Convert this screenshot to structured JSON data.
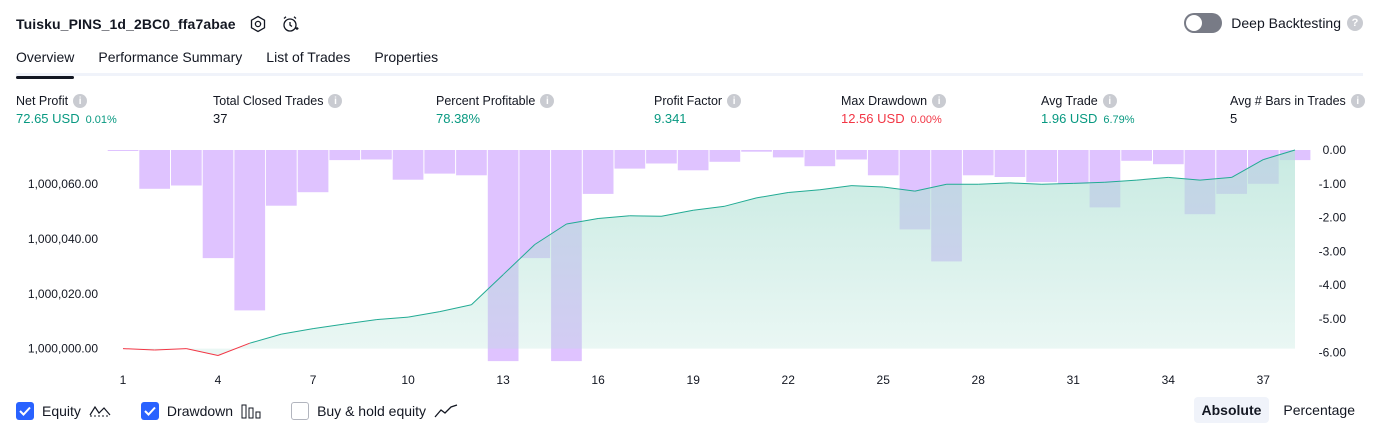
{
  "header": {
    "title": "Tuisku_PINS_1d_2BC0_ffa7abae",
    "icons": [
      "settings-icon",
      "alert-clock-icon"
    ],
    "deep_backtesting_label": "Deep Backtesting",
    "deep_backtesting_enabled": false,
    "help_glyph": "?"
  },
  "tabs": [
    {
      "label": "Overview",
      "active": true
    },
    {
      "label": "Performance Summary",
      "active": false
    },
    {
      "label": "List of Trades",
      "active": false
    },
    {
      "label": "Properties",
      "active": false
    }
  ],
  "metrics": [
    {
      "label": "Net Profit",
      "value": "72.65 USD",
      "sub": "0.01%",
      "tone": "pos"
    },
    {
      "label": "Total Closed Trades",
      "value": "37",
      "sub": "",
      "tone": "neutral"
    },
    {
      "label": "Percent Profitable",
      "value": "78.38%",
      "sub": "",
      "tone": "pos"
    },
    {
      "label": "Profit Factor",
      "value": "9.341",
      "sub": "",
      "tone": "pos"
    },
    {
      "label": "Max Drawdown",
      "value": "12.56 USD",
      "sub": "0.00%",
      "tone": "neg"
    },
    {
      "label": "Avg Trade",
      "value": "1.96 USD",
      "sub": "6.79%",
      "tone": "pos"
    },
    {
      "label": "Avg # Bars in Trades",
      "value": "5",
      "sub": "",
      "tone": "neutral"
    }
  ],
  "info_glyph": "i",
  "colors": {
    "positive": "#089981",
    "negative": "#f23645",
    "drawdown_bar": "#d9b8ff",
    "equity_line_up": "#22ab94",
    "equity_line_down": "#f23645",
    "equity_fill": "#b2e2d6",
    "accent": "#2962ff"
  },
  "chart_data": {
    "type": "bar+area",
    "x_ticks": [
      "1",
      "4",
      "7",
      "10",
      "13",
      "16",
      "19",
      "22",
      "25",
      "28",
      "31",
      "34",
      "37"
    ],
    "left_axis_ticks": [
      "1,000,060.00",
      "1,000,040.00",
      "1,000,020.00",
      "1,000,000.00"
    ],
    "left_axis_tick_values": [
      1000060,
      1000040,
      1000020,
      1000000
    ],
    "left_ylim": [
      999999.5,
      1000072.5
    ],
    "right_axis_ticks": [
      "0.00",
      "-1.00",
      "-2.00",
      "-3.00",
      "-4.00",
      "-5.00",
      "-6.00"
    ],
    "right_axis_tick_values": [
      0,
      -1,
      -2,
      -3,
      -4,
      -5,
      -6
    ],
    "right_ylim": [
      -6.1,
      0
    ],
    "x_range": [
      1,
      38
    ],
    "series": [
      {
        "name": "Equity",
        "x": [
          1,
          2,
          3,
          4,
          5,
          6,
          7,
          8,
          9,
          10,
          11,
          12,
          13,
          14,
          15,
          16,
          17,
          18,
          19,
          20,
          21,
          22,
          23,
          24,
          25,
          26,
          27,
          28,
          29,
          30,
          31,
          32,
          33,
          34,
          35,
          36,
          37,
          38
        ],
        "values": [
          1000000.0,
          999999.5,
          1000000.0,
          999997.5,
          1000002.0,
          1000005.3,
          1000007.3,
          1000009.0,
          1000010.6,
          1000011.5,
          1000013.5,
          1000016.0,
          1000027.0,
          1000038.0,
          1000045.5,
          1000047.5,
          1000048.5,
          1000048.3,
          1000050.5,
          1000052.0,
          1000055.0,
          1000057.0,
          1000058.0,
          1000059.5,
          1000059.0,
          1000057.5,
          1000060.0,
          1000060.0,
          1000060.5,
          1000060.0,
          1000060.3,
          1000060.7,
          1000061.5,
          1000062.5,
          1000061.5,
          1000062.5,
          1000069.0,
          1000072.5
        ]
      },
      {
        "name": "Drawdown",
        "x": [
          1,
          2,
          3,
          4,
          5,
          6,
          7,
          8,
          9,
          10,
          11,
          12,
          13,
          14,
          15,
          16,
          17,
          18,
          19,
          20,
          21,
          22,
          23,
          24,
          25,
          26,
          27,
          28,
          29,
          30,
          31,
          32,
          33,
          34,
          35,
          36,
          37,
          38
        ],
        "values": [
          -0.02,
          -1.15,
          -1.05,
          -3.2,
          -4.75,
          -1.65,
          -1.25,
          -0.3,
          -0.28,
          -0.88,
          -0.7,
          -0.75,
          -6.25,
          -3.2,
          -6.25,
          -1.3,
          -0.55,
          -0.4,
          -0.6,
          -0.35,
          -0.05,
          -0.22,
          -0.48,
          -0.28,
          -0.75,
          -2.35,
          -3.3,
          -0.75,
          -0.8,
          -0.95,
          -1.0,
          -1.7,
          -0.32,
          -0.42,
          -1.9,
          -1.3,
          -1.0,
          -0.3
        ]
      }
    ]
  },
  "legend": {
    "equity": {
      "label": "Equity",
      "checked": true,
      "icon": "equity-line-icon"
    },
    "drawdown": {
      "label": "Drawdown",
      "checked": true,
      "icon": "drawdown-bars-icon"
    },
    "buy_hold": {
      "label": "Buy & hold equity",
      "checked": false,
      "icon": "buy-hold-line-icon"
    }
  },
  "mode": {
    "absolute_label": "Absolute",
    "percentage_label": "Percentage",
    "selected": "Absolute"
  }
}
